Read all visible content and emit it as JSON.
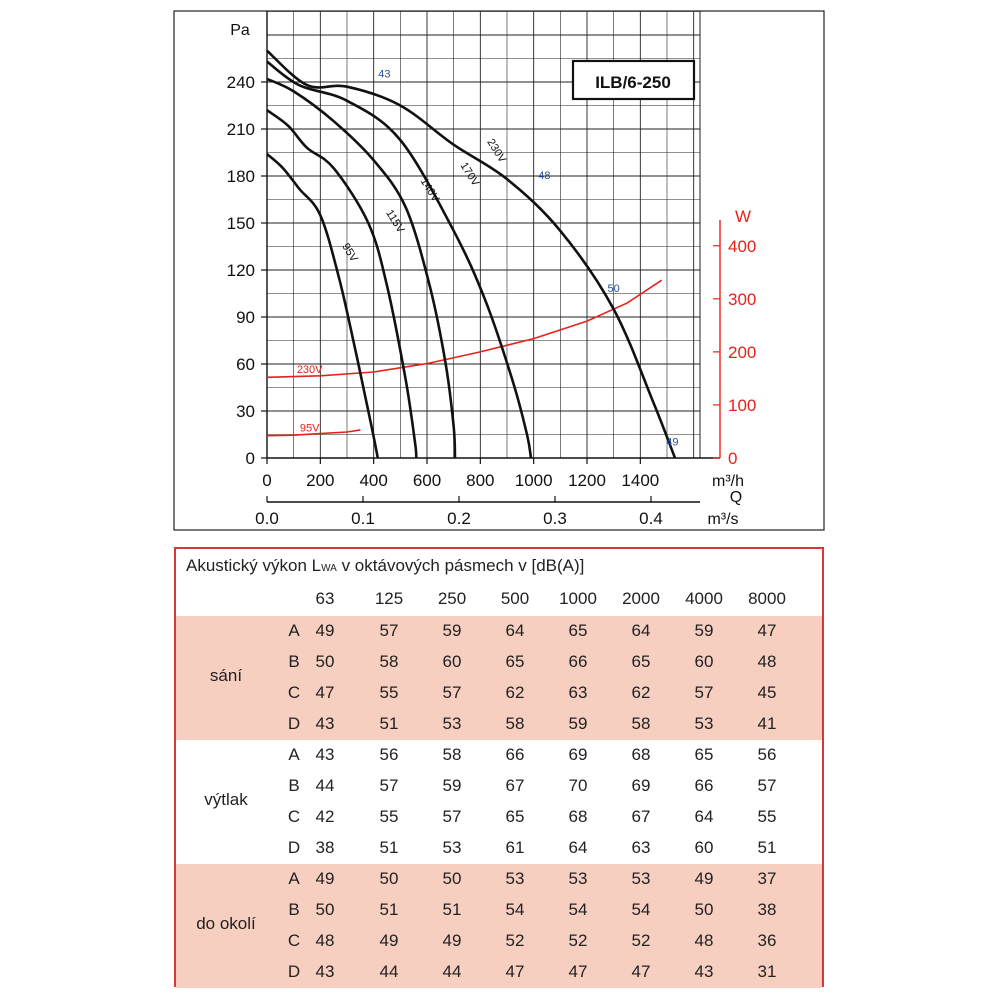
{
  "chart_data": {
    "type": "line",
    "title": "ILB/6-250",
    "y_label": "Pa",
    "y_ticks": [
      "0",
      "30",
      "60",
      "90",
      "120",
      "150",
      "180",
      "210",
      "240"
    ],
    "ylim": [
      0,
      260
    ],
    "x_label_line1": "m³/h",
    "x_ticks": [
      "0",
      "200",
      "400",
      "600",
      "800",
      "1000",
      "1200",
      "1400"
    ],
    "xlim": [
      0,
      1550
    ],
    "q_label": "Q",
    "x2_label": "m³/s",
    "x2_ticks": [
      "0.0",
      "0.1",
      "0.2",
      "0.3",
      "0.4"
    ],
    "y2_label": "W",
    "y2_ticks": [
      "0",
      "100",
      "200",
      "300",
      "400"
    ],
    "grid": true,
    "series": [
      {
        "name": "230V",
        "label_at": [
          850,
          195
        ],
        "points": [
          [
            0,
            260
          ],
          [
            150,
            238
          ],
          [
            300,
            237
          ],
          [
            500,
            225
          ],
          [
            700,
            200
          ],
          [
            900,
            178
          ],
          [
            1100,
            145
          ],
          [
            1300,
            95
          ],
          [
            1450,
            35
          ],
          [
            1530,
            0
          ]
        ]
      },
      {
        "name": "170V",
        "label_at": [
          750,
          180
        ],
        "points": [
          [
            0,
            253
          ],
          [
            120,
            238
          ],
          [
            300,
            228
          ],
          [
            500,
            203
          ],
          [
            700,
            145
          ],
          [
            820,
            100
          ],
          [
            920,
            50
          ],
          [
            975,
            15
          ],
          [
            990,
            0
          ]
        ]
      },
      {
        "name": "140V",
        "label_at": [
          600,
          170
        ],
        "points": [
          [
            0,
            242
          ],
          [
            100,
            234
          ],
          [
            250,
            215
          ],
          [
            400,
            190
          ],
          [
            520,
            160
          ],
          [
            610,
            110
          ],
          [
            670,
            60
          ],
          [
            700,
            20
          ],
          [
            705,
            0
          ]
        ]
      },
      {
        "name": "115V",
        "label_at": [
          470,
          150
        ],
        "points": [
          [
            0,
            222
          ],
          [
            80,
            212
          ],
          [
            150,
            198
          ],
          [
            250,
            185
          ],
          [
            380,
            150
          ],
          [
            450,
            110
          ],
          [
            520,
            50
          ],
          [
            555,
            10
          ],
          [
            560,
            0
          ]
        ]
      },
      {
        "name": "95V",
        "label_at": [
          300,
          130
        ],
        "points": [
          [
            0,
            194
          ],
          [
            60,
            185
          ],
          [
            120,
            172
          ],
          [
            200,
            155
          ],
          [
            270,
            115
          ],
          [
            330,
            70
          ],
          [
            380,
            30
          ],
          [
            410,
            5
          ],
          [
            415,
            0
          ]
        ]
      }
    ],
    "power_series": [
      {
        "name": "230V",
        "unit": "W",
        "points": [
          [
            0,
            152
          ],
          [
            200,
            155
          ],
          [
            400,
            162
          ],
          [
            600,
            178
          ],
          [
            800,
            200
          ],
          [
            1000,
            225
          ],
          [
            1200,
            258
          ],
          [
            1350,
            292
          ],
          [
            1480,
            335
          ]
        ]
      },
      {
        "name": "95V",
        "unit": "W",
        "points": [
          [
            0,
            42
          ],
          [
            100,
            43
          ],
          [
            200,
            46
          ],
          [
            300,
            49
          ],
          [
            350,
            53
          ]
        ]
      }
    ],
    "noise_annotations": [
      {
        "text": "43",
        "at": [
          440,
          243
        ]
      },
      {
        "text": "48",
        "at": [
          1040,
          178
        ]
      },
      {
        "text": "50",
        "at": [
          1300,
          106
        ]
      },
      {
        "text": "49",
        "at": [
          1520,
          8
        ]
      }
    ]
  },
  "table": {
    "title_main": "Akustický výkon L",
    "title_sub": "WA",
    "title_rest": " v oktávových pásmech v [dB(A)]",
    "headers": [
      "63",
      "125",
      "250",
      "500",
      "1000",
      "2000",
      "4000",
      "8000"
    ],
    "groups": [
      {
        "label": "sání",
        "rows": [
          {
            "key": "A",
            "values": [
              "49",
              "57",
              "59",
              "64",
              "65",
              "64",
              "59",
              "47"
            ]
          },
          {
            "key": "B",
            "values": [
              "50",
              "58",
              "60",
              "65",
              "66",
              "65",
              "60",
              "48"
            ]
          },
          {
            "key": "C",
            "values": [
              "47",
              "55",
              "57",
              "62",
              "63",
              "62",
              "57",
              "45"
            ]
          },
          {
            "key": "D",
            "values": [
              "43",
              "51",
              "53",
              "58",
              "59",
              "58",
              "53",
              "41"
            ]
          }
        ]
      },
      {
        "label": "výtlak",
        "rows": [
          {
            "key": "A",
            "values": [
              "43",
              "56",
              "58",
              "66",
              "69",
              "68",
              "65",
              "56"
            ]
          },
          {
            "key": "B",
            "values": [
              "44",
              "57",
              "59",
              "67",
              "70",
              "69",
              "66",
              "57"
            ]
          },
          {
            "key": "C",
            "values": [
              "42",
              "55",
              "57",
              "65",
              "68",
              "67",
              "64",
              "55"
            ]
          },
          {
            "key": "D",
            "values": [
              "38",
              "51",
              "53",
              "61",
              "64",
              "63",
              "60",
              "51"
            ]
          }
        ]
      },
      {
        "label": "do okolí",
        "rows": [
          {
            "key": "A",
            "values": [
              "49",
              "50",
              "50",
              "53",
              "53",
              "53",
              "49",
              "37"
            ]
          },
          {
            "key": "B",
            "values": [
              "50",
              "51",
              "51",
              "54",
              "54",
              "54",
              "50",
              "38"
            ]
          },
          {
            "key": "C",
            "values": [
              "48",
              "49",
              "49",
              "52",
              "52",
              "52",
              "48",
              "36"
            ]
          },
          {
            "key": "D",
            "values": [
              "43",
              "44",
              "44",
              "47",
              "47",
              "47",
              "43",
              "31"
            ]
          }
        ]
      }
    ]
  },
  "colors": {
    "curve": "#111111",
    "power": "#e8211b",
    "noise_label": "#2b4ea2",
    "grid": "#222222",
    "table_border": "#d23a3a",
    "table_shade": "#f7cfc0"
  }
}
